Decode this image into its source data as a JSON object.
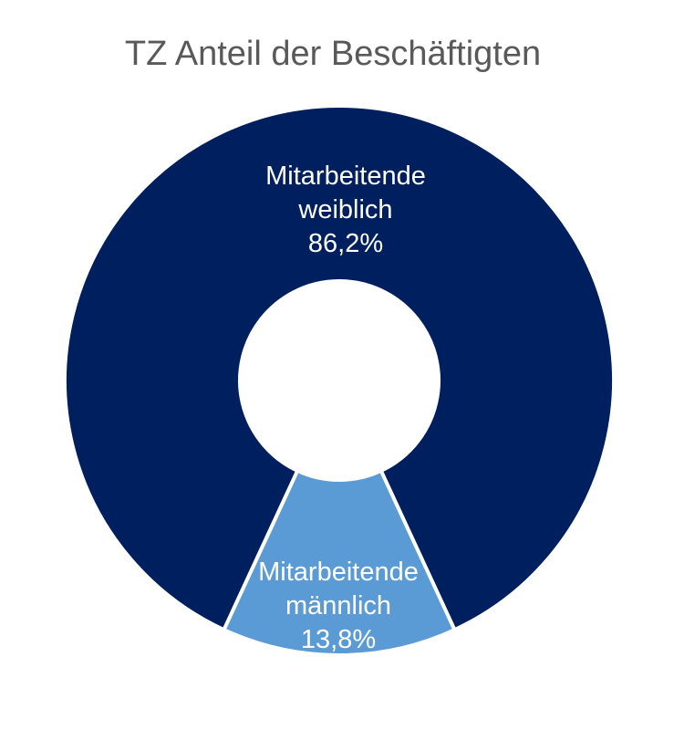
{
  "chart_data": {
    "type": "pie",
    "variant": "donut",
    "title": "TZ Anteil der Beschäftigten",
    "slices": [
      {
        "name_line1": "Mitarbeitende",
        "name_line2": "weiblich",
        "value": 86.2,
        "value_label": "86,2%",
        "color": "#001f5f"
      },
      {
        "name_line1": "Mitarbeitende",
        "name_line2": "männlich",
        "value": 13.8,
        "value_label": "13,8%",
        "color": "#5b9bd5"
      }
    ],
    "separator_color": "#ffffff"
  }
}
